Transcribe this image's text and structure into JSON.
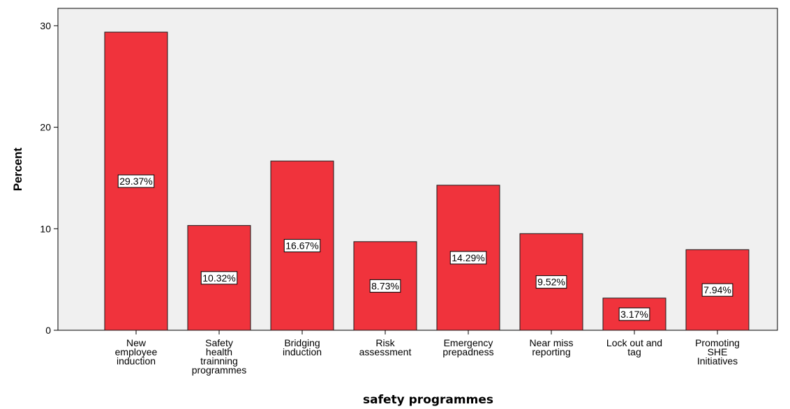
{
  "chart_data": {
    "type": "bar",
    "categories": [
      "New employee induction",
      "Safety health trainning programmes",
      "Bridging induction",
      "Risk assessment",
      "Emergency prepadness",
      "Near miss reporting",
      "Lock out and tag",
      "Promoting SHE Initiatives"
    ],
    "category_lines": [
      [
        "New",
        "employee",
        "induction"
      ],
      [
        "Safety",
        "health",
        "trainning",
        "programmes"
      ],
      [
        "Bridging",
        "induction"
      ],
      [
        "Risk",
        "assessment"
      ],
      [
        "Emergency",
        "prepadness"
      ],
      [
        "Near miss",
        "reporting"
      ],
      [
        "Lock out and",
        "tag"
      ],
      [
        "Promoting",
        "SHE",
        "Initiatives"
      ]
    ],
    "values": [
      29.37,
      10.32,
      16.67,
      8.73,
      14.29,
      9.52,
      3.17,
      7.94
    ],
    "data_labels": [
      "29.37%",
      "10.32%",
      "16.67%",
      "8.73%",
      "14.29%",
      "9.52%",
      "3.17%",
      "7.94%"
    ],
    "xlabel": "safety programmes",
    "ylabel": "Percent",
    "ylim": [
      0,
      30
    ],
    "yticks": [
      0,
      10,
      20,
      30
    ],
    "grid": false,
    "colors": {
      "bar_fill": "#f0333c",
      "bar_stroke": "#1a1a1a",
      "plot_background": "#f0f0f0",
      "axis": "#000000"
    }
  }
}
